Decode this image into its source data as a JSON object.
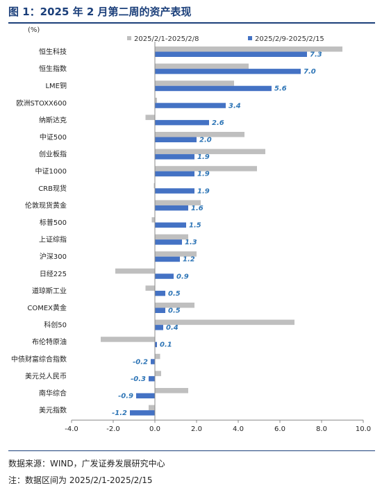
{
  "title": "图 1：2025 年 2 月第二周的资产表现",
  "source": "数据来源：WIND，广发证券发展研究中心",
  "note": "注：数据区间为 2025/2/1-2025/2/15",
  "chart_data": {
    "type": "bar",
    "orientation": "horizontal",
    "unit_label": "(%)",
    "categories": [
      "恒生科技",
      "恒生指数",
      "LME铜",
      "欧洲STOXX600",
      "纳斯达克",
      "中证500",
      "创业板指",
      "中证1000",
      "CRB现货",
      "伦敦现货黄金",
      "标普500",
      "上证综指",
      "沪深300",
      "日经225",
      "道琼斯工业",
      "COMEX黄金",
      "科创50",
      "布伦特原油",
      "中债财富综合指数",
      "美元兑人民币",
      "南华综合",
      "美元指数"
    ],
    "series": [
      {
        "name": "2025/2/1-2025/2/8",
        "color": "#bfbfbf",
        "values": [
          9.0,
          4.5,
          3.8,
          0.1,
          -0.45,
          4.3,
          5.3,
          4.9,
          -0.05,
          2.2,
          -0.15,
          1.6,
          2.0,
          -1.9,
          -0.45,
          1.9,
          6.7,
          -2.6,
          0.25,
          0.3,
          1.6,
          -0.3
        ]
      },
      {
        "name": "2025/2/9-2025/2/15",
        "color": "#4472c4",
        "values": [
          7.3,
          7.0,
          5.6,
          3.4,
          2.6,
          2.0,
          1.9,
          1.9,
          1.9,
          1.6,
          1.5,
          1.3,
          1.2,
          0.9,
          0.5,
          0.5,
          0.4,
          0.1,
          -0.2,
          -0.3,
          -0.9,
          -1.2
        ],
        "data_labels": [
          "7.3",
          "7.0",
          "5.6",
          "3.4",
          "2.6",
          "2.0",
          "1.9",
          "1.9",
          "1.9",
          "1.6",
          "1.5",
          "1.3",
          "1.2",
          "0.9",
          "0.5",
          "0.5",
          "0.4",
          "0.1",
          "-0.2",
          "-0.3",
          "-0.9",
          "-1.2"
        ]
      }
    ],
    "xlim": [
      -4.0,
      10.0
    ],
    "xticks": [
      "-4.0",
      "-2.0",
      "0.0",
      "2.0",
      "4.0",
      "6.0",
      "8.0",
      "10.0"
    ],
    "xtick_values": [
      -4,
      -2,
      0,
      2,
      4,
      6,
      8,
      10
    ],
    "legend_position": "top",
    "grid": false,
    "label_color": "#2e75b6"
  }
}
